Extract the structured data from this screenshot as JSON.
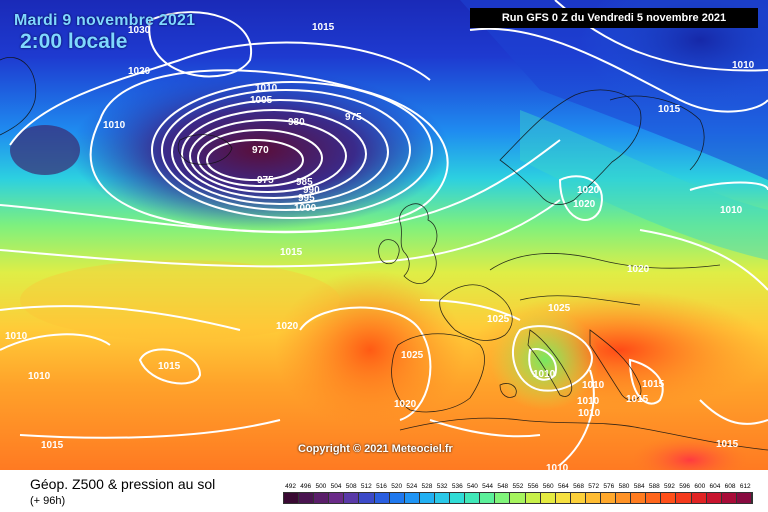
{
  "header": {
    "date": "Mardi 9 novembre 2021",
    "time": "2:00 locale",
    "run": "Run GFS 0 Z du Vendredi 5 novembre 2021"
  },
  "copyright": "Copyright © 2021 Meteociel.fr",
  "footer": {
    "title": "Géop. Z500 & pression au sol",
    "subtitle": "(+ 96h)"
  },
  "isobar_labels": [
    "1030",
    "1020",
    "1015",
    "1010",
    "1005",
    "1010",
    "970",
    "980",
    "975",
    "975",
    "985",
    "990",
    "995",
    "1000",
    "1010",
    "1015",
    "1020",
    "1020",
    "1020",
    "1015",
    "1010",
    "1025",
    "1015",
    "1025",
    "1020",
    "1025",
    "1010",
    "1010",
    "1010",
    "1010",
    "1015",
    "1015",
    "1015",
    "1015",
    "1010",
    "1020",
    "1010",
    "1010"
  ],
  "scale": {
    "labels": [
      "492",
      "496",
      "500",
      "504",
      "508",
      "512",
      "516",
      "520",
      "524",
      "528",
      "532",
      "536",
      "540",
      "544",
      "548",
      "552",
      "556",
      "560",
      "564",
      "568",
      "572",
      "576",
      "580",
      "584",
      "588",
      "592",
      "596",
      "600",
      "604",
      "608",
      "612"
    ],
    "colors": [
      "#3a0a33",
      "#4a1450",
      "#5a1e6a",
      "#6a2a88",
      "#5a3aa8",
      "#3c4ac8",
      "#2a5ee0",
      "#1f78ee",
      "#1f94f4",
      "#22b0f2",
      "#2ac8e8",
      "#30dcd6",
      "#40e8b8",
      "#5cf09a",
      "#80f47a",
      "#a6f45e",
      "#c8f04a",
      "#e4ea40",
      "#f6e040",
      "#fcd03a",
      "#ffbc32",
      "#ffa82c",
      "#ff9226",
      "#ff7c20",
      "#ff661c",
      "#ff501a",
      "#f43a1c",
      "#e02424",
      "#c8142e",
      "#a80c38",
      "#880a40"
    ]
  }
}
